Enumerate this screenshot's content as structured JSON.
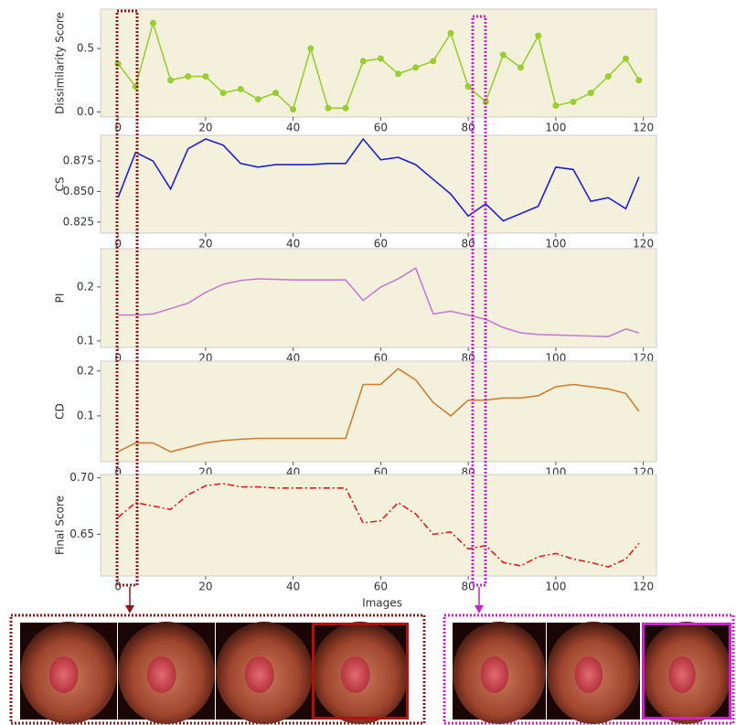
{
  "chart_data": [
    {
      "type": "line",
      "ylabel": "Dissimilarity Score",
      "color": "#9acd32",
      "marker": true,
      "x": [
        0,
        4,
        8,
        12,
        16,
        20,
        24,
        28,
        32,
        36,
        40,
        44,
        48,
        52,
        56,
        60,
        64,
        68,
        72,
        76,
        80,
        84,
        88,
        92,
        96,
        100,
        104,
        108,
        112,
        116,
        119
      ],
      "values": [
        0.38,
        0.2,
        0.7,
        0.25,
        0.28,
        0.28,
        0.15,
        0.18,
        0.1,
        0.15,
        0.02,
        0.5,
        0.03,
        0.03,
        0.4,
        0.42,
        0.3,
        0.35,
        0.4,
        0.62,
        0.2,
        0.08,
        0.45,
        0.35,
        0.6,
        0.05,
        0.08,
        0.15,
        0.28,
        0.42,
        0.25
      ],
      "xlim": [
        -4,
        123
      ],
      "xticks": [
        0,
        20,
        40,
        60,
        80,
        100,
        120
      ],
      "ylim": [
        -0.04,
        0.81
      ],
      "yticks": [
        {
          "value": 0,
          "label": "0.0"
        },
        0.5
      ]
    },
    {
      "type": "line",
      "ylabel": "CS",
      "color": "#2020d0",
      "x": [
        0,
        4,
        8,
        12,
        16,
        20,
        24,
        28,
        32,
        36,
        40,
        44,
        48,
        52,
        56,
        60,
        64,
        68,
        72,
        76,
        80,
        84,
        88,
        92,
        96,
        100,
        104,
        108,
        112,
        116,
        119
      ],
      "values": [
        0.845,
        0.882,
        0.875,
        0.852,
        0.885,
        0.893,
        0.888,
        0.873,
        0.87,
        0.872,
        0.872,
        0.872,
        0.873,
        0.873,
        0.893,
        0.876,
        0.878,
        0.872,
        0.86,
        0.848,
        0.83,
        0.84,
        0.826,
        0.832,
        0.838,
        0.87,
        0.868,
        0.842,
        0.845,
        0.836,
        0.862
      ],
      "xlim": [
        -4,
        123
      ],
      "xticks": [
        0,
        20,
        40,
        60,
        80,
        100,
        120
      ],
      "ylim": [
        0.816,
        0.896
      ],
      "yticks": [
        0.825,
        {
          "value": 0.85,
          "label": "0.850"
        },
        0.875
      ]
    },
    {
      "type": "line",
      "ylabel": "PI",
      "color": "#c77dd6",
      "x": [
        0,
        4,
        8,
        12,
        16,
        20,
        24,
        28,
        32,
        36,
        40,
        44,
        48,
        52,
        56,
        60,
        64,
        68,
        72,
        76,
        80,
        84,
        88,
        92,
        96,
        100,
        104,
        108,
        112,
        116,
        119
      ],
      "values": [
        0.148,
        0.148,
        0.15,
        0.16,
        0.17,
        0.19,
        0.205,
        0.212,
        0.215,
        0.214,
        0.213,
        0.213,
        0.213,
        0.213,
        0.175,
        0.2,
        0.215,
        0.235,
        0.15,
        0.155,
        0.148,
        0.14,
        0.125,
        0.115,
        0.112,
        0.111,
        0.11,
        0.109,
        0.108,
        0.122,
        0.115
      ],
      "xlim": [
        -4,
        123
      ],
      "xticks": [
        0,
        20,
        40,
        60,
        80,
        100,
        120
      ],
      "ylim": [
        0.088,
        0.271
      ],
      "yticks": [
        0.1,
        0.2
      ]
    },
    {
      "type": "line",
      "ylabel": "CD",
      "color": "#cd7f32",
      "x": [
        0,
        4,
        8,
        12,
        16,
        20,
        24,
        28,
        32,
        36,
        40,
        44,
        48,
        52,
        56,
        60,
        64,
        68,
        72,
        76,
        80,
        84,
        88,
        92,
        96,
        100,
        104,
        108,
        112,
        116,
        119
      ],
      "values": [
        0.02,
        0.04,
        0.04,
        0.02,
        0.03,
        0.04,
        0.045,
        0.048,
        0.05,
        0.05,
        0.05,
        0.05,
        0.05,
        0.05,
        0.17,
        0.17,
        0.205,
        0.18,
        0.13,
        0.1,
        0.135,
        0.135,
        0.14,
        0.14,
        0.145,
        0.165,
        0.17,
        0.165,
        0.16,
        0.15,
        0.11
      ],
      "xlim": [
        -4,
        123
      ],
      "xticks": [
        0,
        20,
        40,
        60,
        80,
        100,
        120
      ],
      "ylim": [
        -0.002,
        0.222
      ],
      "yticks": [
        0.1,
        0.2
      ]
    },
    {
      "type": "line",
      "ylabel": "Final Score",
      "xlabel": "Images",
      "color": "#e41a1c",
      "linestyle": "dashdot",
      "x": [
        0,
        4,
        8,
        12,
        16,
        20,
        24,
        28,
        32,
        36,
        40,
        44,
        48,
        52,
        56,
        60,
        64,
        68,
        72,
        76,
        80,
        84,
        88,
        92,
        96,
        100,
        104,
        108,
        112,
        116,
        119
      ],
      "values": [
        0.665,
        0.678,
        0.675,
        0.672,
        0.685,
        0.693,
        0.695,
        0.692,
        0.692,
        0.691,
        0.691,
        0.691,
        0.691,
        0.691,
        0.66,
        0.662,
        0.678,
        0.668,
        0.65,
        0.652,
        0.637,
        0.64,
        0.625,
        0.622,
        0.63,
        0.633,
        0.628,
        0.625,
        0.621,
        0.628,
        0.642
      ],
      "xlim": [
        -4,
        123
      ],
      "xticks": [
        0,
        20,
        40,
        60,
        80,
        100,
        120
      ],
      "ylim": [
        0.613,
        0.703
      ],
      "yticks": [
        0.65,
        {
          "value": 0.7,
          "label": "0.70"
        }
      ]
    }
  ]
}
